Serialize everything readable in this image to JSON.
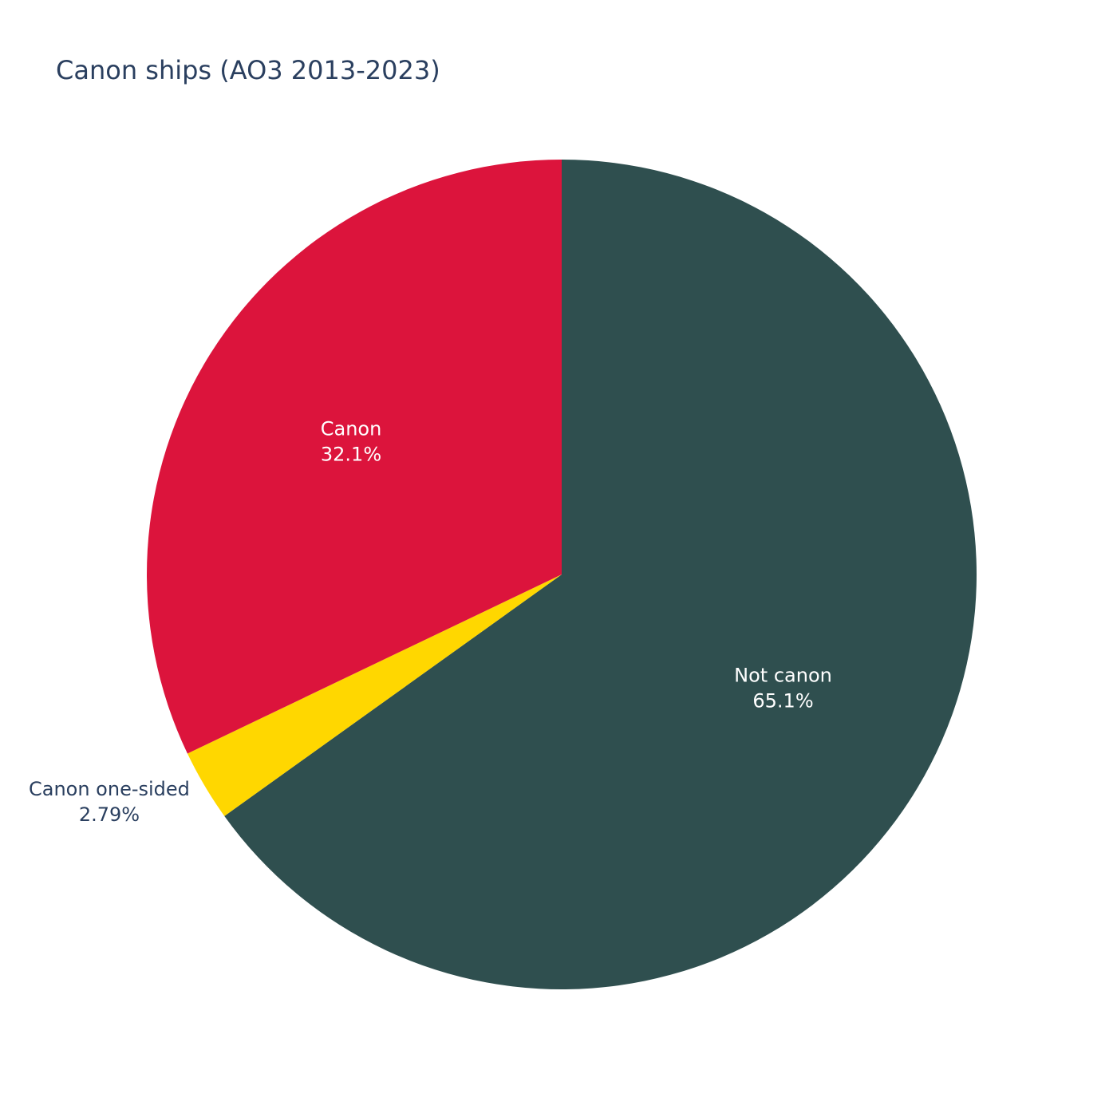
{
  "chart_data": {
    "type": "pie",
    "title": "Canon ships (AO3 2013-2023)",
    "slices": [
      {
        "label": "Not canon",
        "value": 65.1,
        "display": "65.1%",
        "color": "#2f4f4f",
        "label_color": "#ffffff",
        "label_position": "inside"
      },
      {
        "label": "Canon one-sided",
        "value": 2.79,
        "display": "2.79%",
        "color": "#ffd700",
        "label_color": "#2a3f5f",
        "label_position": "outside"
      },
      {
        "label": "Canon",
        "value": 32.1,
        "display": "32.1%",
        "color": "#dc143c",
        "label_color": "#ffffff",
        "label_position": "inside"
      }
    ],
    "direction": "clockwise",
    "start": "top",
    "legend": "none"
  },
  "colors": {
    "title": "#2a3f5f",
    "background": "#ffffff"
  }
}
